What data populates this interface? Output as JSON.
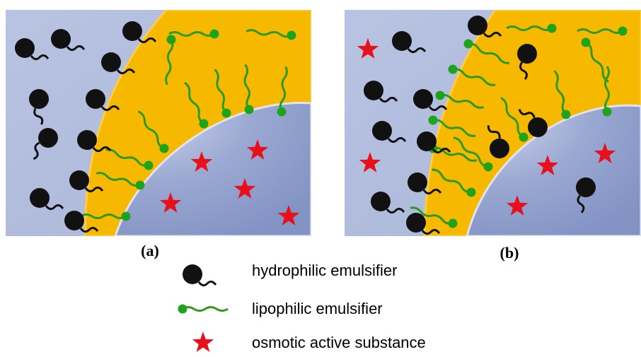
{
  "panels": [
    {
      "label": "(a)"
    },
    {
      "label": "(b)"
    }
  ],
  "legend": [
    {
      "label": "hydrophilic emulsifier"
    },
    {
      "label": "lipophilic emulsifier"
    },
    {
      "label": "osmotic active substance"
    }
  ]
}
